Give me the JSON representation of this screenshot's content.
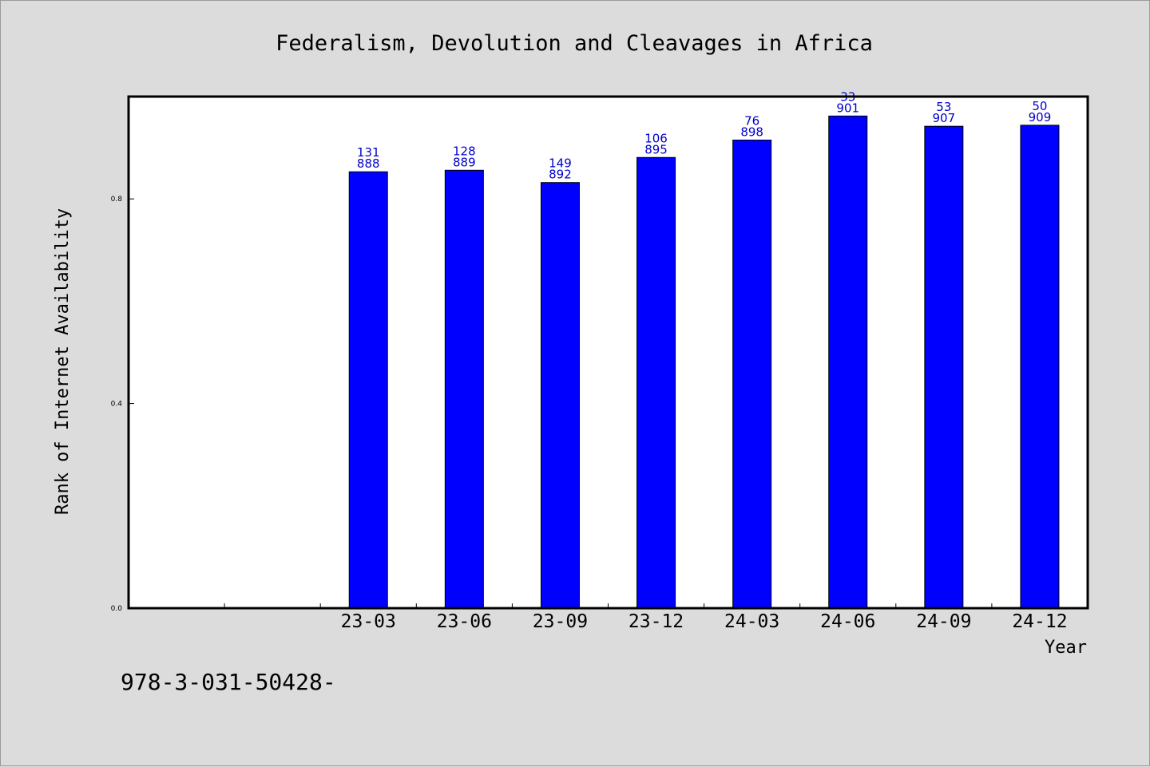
{
  "chart_data": {
    "type": "bar",
    "title": "Federalism, Devolution and Cleavages in Africa",
    "xlabel": "Year",
    "ylabel": "Rank of Internet Availability",
    "ylim": [
      0.0,
      1.0
    ],
    "yticks": [
      0.0,
      0.4,
      0.8
    ],
    "ytick_labels": [
      "0.0",
      "0.4",
      "0.8"
    ],
    "grid": false,
    "legend": "none",
    "bar_color": "#0000ff",
    "label_color": "#0000cc",
    "categories": [
      "23-03",
      "23-06",
      "23-09",
      "23-12",
      "24-03",
      "24-06",
      "24-09",
      "24-12"
    ],
    "category_slots": [
      "",
      "",
      "23-03",
      "23-06",
      "23-09",
      "23-12",
      "24-03",
      "24-06",
      "24-09",
      "24-12"
    ],
    "values": [
      0.853,
      0.856,
      0.832,
      0.881,
      0.915,
      0.962,
      0.942,
      0.944
    ],
    "labels_top": [
      "131",
      "128",
      "149",
      "106",
      "76",
      "33",
      "53",
      "50"
    ],
    "labels_bottom": [
      "888",
      "889",
      "892",
      "895",
      "898",
      "901",
      "907",
      "909"
    ]
  },
  "footer_text": "978-3-031-50428-"
}
